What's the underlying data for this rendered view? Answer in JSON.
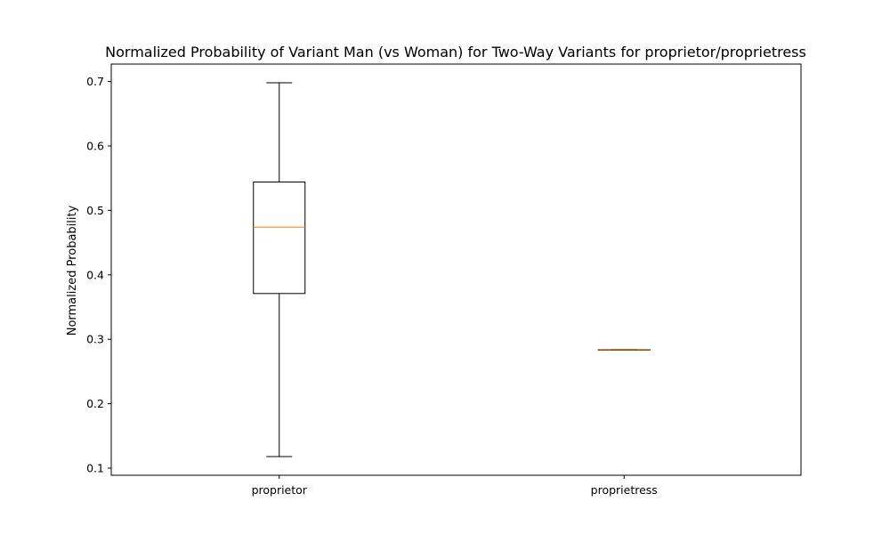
{
  "chart_data": {
    "type": "box",
    "title": "Normalized Probability of Variant Man (vs Woman) for Two-Way Variants for proprietor/proprietress",
    "xlabel": "",
    "ylabel": "Normalized Probability",
    "categories": [
      "proprietor",
      "proprietress"
    ],
    "boxes": [
      {
        "category": "proprietor",
        "whisker_low": 0.118,
        "q1": 0.371,
        "median": 0.474,
        "q3": 0.544,
        "whisker_high": 0.698
      },
      {
        "category": "proprietress",
        "whisker_low": 0.284,
        "q1": 0.284,
        "median": 0.284,
        "q3": 0.284,
        "whisker_high": 0.284
      }
    ],
    "ylim": [
      0.089,
      0.727
    ],
    "yticks": [
      0.1,
      0.2,
      0.3,
      0.4,
      0.5,
      0.6,
      0.7
    ],
    "ytick_labels": [
      "0.1",
      "0.2",
      "0.3",
      "0.4",
      "0.5",
      "0.6",
      "0.7"
    ],
    "grid": false,
    "colors": {
      "box": "#000000",
      "median": "#ff7f0e",
      "axes": "#000000"
    }
  }
}
